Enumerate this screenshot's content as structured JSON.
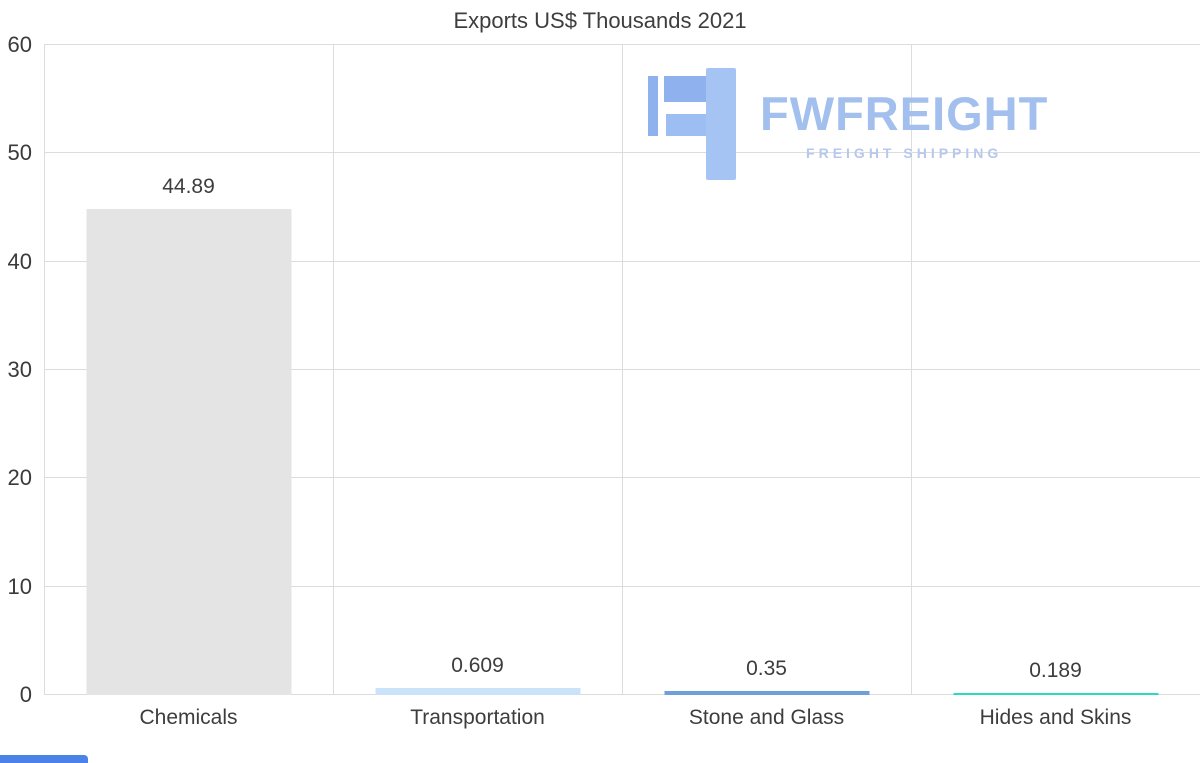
{
  "chart_data": {
    "type": "bar",
    "title": "Exports US$ Thousands 2021",
    "categories": [
      "Chemicals",
      "Transportation",
      "Stone and Glass",
      "Hides and Skins"
    ],
    "values": [
      44.89,
      0.609,
      0.35,
      0.189
    ],
    "value_labels": [
      "44.89",
      "0.609",
      "0.35",
      "0.189"
    ],
    "bar_colors": [
      "#e4e4e4",
      "#cbe3f8",
      "#6f9fd8",
      "#2ed9c3"
    ],
    "ylim": [
      0,
      60
    ],
    "yticks": [
      0,
      10,
      20,
      30,
      40,
      50,
      60
    ],
    "xlabel": "",
    "ylabel": "",
    "grid": true,
    "legend": false
  },
  "watermark": {
    "brand": "FWFREIGHT",
    "tagline": "FREIGHT SHIPPING",
    "brand_color": "#a2bfee",
    "tagline_color": "#b7c8ee"
  },
  "colors": {
    "background": "#ffffff",
    "gridline": "#dcdcdc",
    "axis_text": "#3a3a3a",
    "corner_strip": "#4b82e8"
  }
}
